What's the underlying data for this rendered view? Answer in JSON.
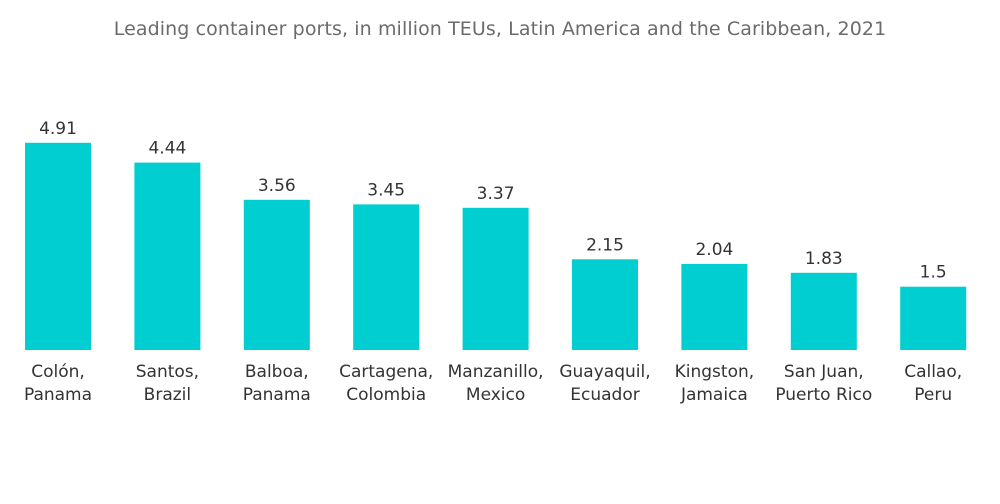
{
  "chart_data": {
    "type": "bar",
    "title": "Leading container ports, in million TEUs, Latin America and the Caribbean, 2021",
    "categories": [
      [
        "Colón,",
        "Panama"
      ],
      [
        "Santos,",
        "Brazil"
      ],
      [
        "Balboa,",
        "Panama"
      ],
      [
        "Cartagena,",
        "Colombia"
      ],
      [
        "Manzanillo,",
        "Mexico"
      ],
      [
        "Guayaquil,",
        "Ecuador"
      ],
      [
        "Kingston,",
        "Jamaica"
      ],
      [
        "San Juan,",
        "Puerto Rico"
      ],
      [
        "Callao,",
        "Peru"
      ]
    ],
    "values": [
      4.91,
      4.44,
      3.56,
      3.45,
      3.37,
      2.15,
      2.04,
      1.83,
      1.5
    ],
    "value_labels": [
      "4.91",
      "4.44",
      "3.56",
      "3.45",
      "3.37",
      "2.15",
      "2.04",
      "1.83",
      "1.5"
    ],
    "xlabel": "",
    "ylabel": "",
    "grid": false,
    "legend": "none",
    "colors": {
      "bar": "#00CED1",
      "text": "#333333",
      "title": "#6b6b6b"
    }
  }
}
